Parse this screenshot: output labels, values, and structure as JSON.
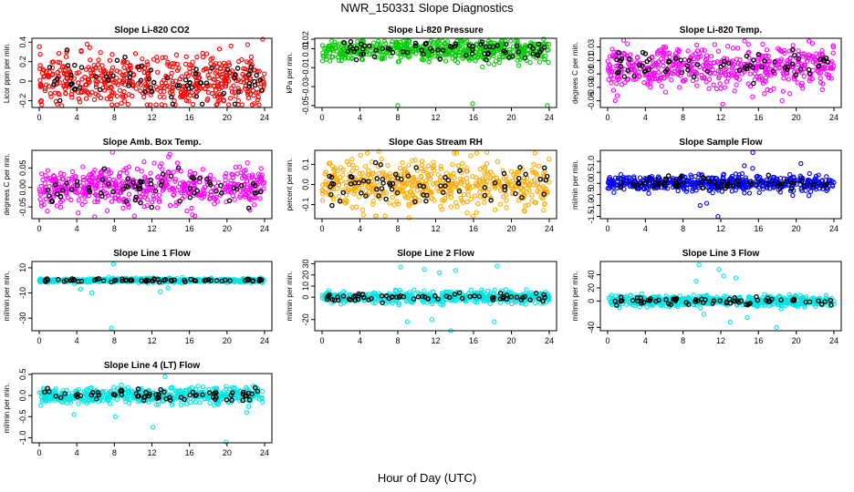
{
  "title": "NWR_150331  Slope Diagnostics",
  "xlabel": "Hour of Day (UTC)",
  "chart_data": [
    {
      "type": "scatter",
      "title": "Slope Li-820 CO2",
      "ylabel": "Licor ppm per min.",
      "color": "#ff0000",
      "xlim": [
        0,
        24
      ],
      "xticks": [
        0,
        4,
        8,
        12,
        16,
        20,
        24
      ],
      "ylim": [
        -0.27,
        0.44
      ],
      "yticks": [
        -0.2,
        0,
        0.2,
        0.4
      ],
      "yticklabels": [
        "-0.2",
        "0",
        "0.2",
        "0.4"
      ],
      "sample_spread": 0.13,
      "outliers": [
        [
          23.8,
          0.43
        ],
        [
          5.1,
          0.38
        ],
        [
          13.4,
          -0.25
        ],
        [
          2.4,
          -0.25
        ],
        [
          19.2,
          0.33
        ]
      ]
    },
    {
      "type": "scatter",
      "title": "Slope Li-820 Pressure",
      "ylabel": "kPa per min.",
      "color": "#00cc00",
      "xlim": [
        0,
        24
      ],
      "xticks": [
        0,
        4,
        8,
        12,
        16,
        20,
        24
      ],
      "ylim": [
        -0.052,
        0.021
      ],
      "yticks": [
        -0.05,
        -0.03,
        -0.01,
        0.01,
        0.02
      ],
      "yticklabels": [
        "-0.05",
        "-0.03",
        "-0.01",
        "0.01",
        "0.02"
      ],
      "sample_spread": 0.006,
      "center": 0.008,
      "outliers": [
        [
          8.0,
          -0.05
        ],
        [
          15.9,
          -0.048
        ],
        [
          23.8,
          -0.05
        ],
        [
          23.4,
          0.02
        ]
      ]
    },
    {
      "type": "scatter",
      "title": "Slope Li-820 Temp.",
      "ylabel": "degrees C per min.",
      "color": "#ff00ff",
      "xlim": [
        0,
        24
      ],
      "xticks": [
        0,
        4,
        8,
        12,
        16,
        20,
        24
      ],
      "ylim": [
        -0.06,
        0.043
      ],
      "yticks": [
        -0.05,
        -0.03,
        -0.01,
        0.01,
        0.03
      ],
      "yticklabels": [
        "-0.05",
        "-0.03",
        "-0.01",
        "0.01",
        "0.03"
      ],
      "sample_spread": 0.015,
      "outliers": [
        [
          12.2,
          -0.055
        ],
        [
          18.5,
          -0.05
        ],
        [
          1.7,
          0.04
        ]
      ]
    },
    {
      "type": "scatter",
      "title": "Slope Amb. Box Temp.",
      "ylabel": "degrees C per min.",
      "color": "#ff00ff",
      "xlim": [
        0,
        24
      ],
      "xticks": [
        0,
        4,
        8,
        12,
        16,
        20,
        24
      ],
      "ylim": [
        -0.08,
        0.095
      ],
      "yticks": [
        -0.05,
        0,
        0.05
      ],
      "yticklabels": [
        "-0.05",
        "0.00",
        "0.05"
      ],
      "sample_spread": 0.025,
      "outliers": [
        [
          7.8,
          0.09
        ],
        [
          13.9,
          0.085
        ],
        [
          5.9,
          -0.075
        ],
        [
          16.3,
          -0.07
        ]
      ]
    },
    {
      "type": "scatter",
      "title": "Slope Gas Stream RH",
      "ylabel": "percent per min.",
      "color": "#ffaa00",
      "xlim": [
        0,
        24
      ],
      "xticks": [
        0,
        4,
        8,
        12,
        16,
        20,
        24
      ],
      "ylim": [
        -0.17,
        0.17
      ],
      "yticks": [
        -0.1,
        0,
        0.1
      ],
      "yticklabels": [
        "-0.1",
        "0.0",
        "0.1"
      ],
      "sample_spread": 0.06,
      "outliers": [
        [
          6.0,
          0.165
        ],
        [
          9.2,
          -0.165
        ],
        [
          17.4,
          0.16
        ]
      ]
    },
    {
      "type": "scatter",
      "title": "Slope Sample Flow",
      "ylabel": "ml/min per min.",
      "color": "#0000ff",
      "xlim": [
        0,
        24
      ],
      "xticks": [
        0,
        4,
        8,
        12,
        16,
        20,
        24
      ],
      "ylim": [
        -1.6,
        1.5
      ],
      "yticks": [
        -1.5,
        -1,
        -0.5,
        0,
        0.5,
        1
      ],
      "yticklabels": [
        "-1.5",
        "-1.0",
        "-0.5",
        "0.0",
        "0.5",
        "1.0"
      ],
      "sample_spread": 0.18,
      "outliers": [
        [
          15.4,
          1.4
        ],
        [
          11.7,
          -1.5
        ],
        [
          10.5,
          -0.9
        ],
        [
          9.8,
          -1.0
        ],
        [
          20.5,
          0.9
        ],
        [
          14.5,
          0.8
        ]
      ]
    },
    {
      "type": "scatter",
      "title": "Slope Line 1 Flow",
      "ylabel": "ml/min per min.",
      "color": "#00e5e5",
      "xlim": [
        0,
        24
      ],
      "xticks": [
        0,
        4,
        8,
        12,
        16,
        20,
        24
      ],
      "ylim": [
        -40,
        15
      ],
      "yticks": [
        -30,
        -10,
        10
      ],
      "yticklabels": [
        "-30",
        "-10",
        "10"
      ],
      "sample_spread": 0.8,
      "outliers": [
        [
          7.7,
          -38
        ],
        [
          7.9,
          13
        ],
        [
          4.4,
          -7
        ],
        [
          5.6,
          -10
        ],
        [
          12.9,
          -9
        ],
        [
          13.7,
          -6
        ]
      ]
    },
    {
      "type": "scatter",
      "title": "Slope Line 2 Flow",
      "ylabel": "ml/min per min.",
      "color": "#00e5e5",
      "xlim": [
        0,
        24
      ],
      "xticks": [
        0,
        4,
        8,
        12,
        16,
        20,
        24
      ],
      "ylim": [
        -30,
        32
      ],
      "yticks": [
        -20,
        0,
        10,
        20,
        30
      ],
      "yticklabels": [
        "-20",
        "0",
        "10",
        "20",
        "30"
      ],
      "sample_spread": 2.5,
      "outliers": [
        [
          8.3,
          27
        ],
        [
          10.8,
          25
        ],
        [
          12.4,
          22
        ],
        [
          13.6,
          -30
        ],
        [
          14.1,
          24
        ],
        [
          18.2,
          -22
        ],
        [
          18.5,
          28
        ],
        [
          9.0,
          -22
        ],
        [
          11.6,
          -20
        ]
      ]
    },
    {
      "type": "scatter",
      "title": "Slope Line 3 Flow",
      "ylabel": "ml/min per min.",
      "color": "#00e5e5",
      "xlim": [
        0,
        24
      ],
      "xticks": [
        0,
        4,
        8,
        12,
        16,
        20,
        24
      ],
      "ylim": [
        -45,
        60
      ],
      "yticks": [
        -40,
        0,
        20,
        40
      ],
      "yticklabels": [
        "-40",
        "0",
        "20",
        "40"
      ],
      "sample_spread": 4,
      "outliers": [
        [
          9.7,
          55
        ],
        [
          11.8,
          48
        ],
        [
          12.3,
          38
        ],
        [
          13.0,
          -32
        ],
        [
          13.6,
          35
        ],
        [
          10.2,
          -20
        ],
        [
          14.8,
          -25
        ],
        [
          17.9,
          -40
        ],
        [
          9.4,
          30
        ]
      ]
    },
    {
      "type": "scatter",
      "title": "Slope Line 4 (LT) Flow",
      "ylabel": "ml/min per min.",
      "color": "#00e5e5",
      "xlim": [
        0,
        24
      ],
      "xticks": [
        0,
        4,
        8,
        12,
        16,
        20,
        24
      ],
      "ylim": [
        -1.12,
        0.52
      ],
      "yticks": [
        -1,
        -0.5,
        0,
        0.5
      ],
      "yticklabels": [
        "-1.0",
        "-0.5",
        "0.0",
        "0.5"
      ],
      "sample_spread": 0.09,
      "outliers": [
        [
          19.9,
          -1.1
        ],
        [
          12.1,
          -0.75
        ],
        [
          3.7,
          -0.45
        ],
        [
          8.1,
          -0.5
        ],
        [
          13.4,
          0.45
        ],
        [
          22.1,
          -0.4
        ]
      ]
    }
  ]
}
